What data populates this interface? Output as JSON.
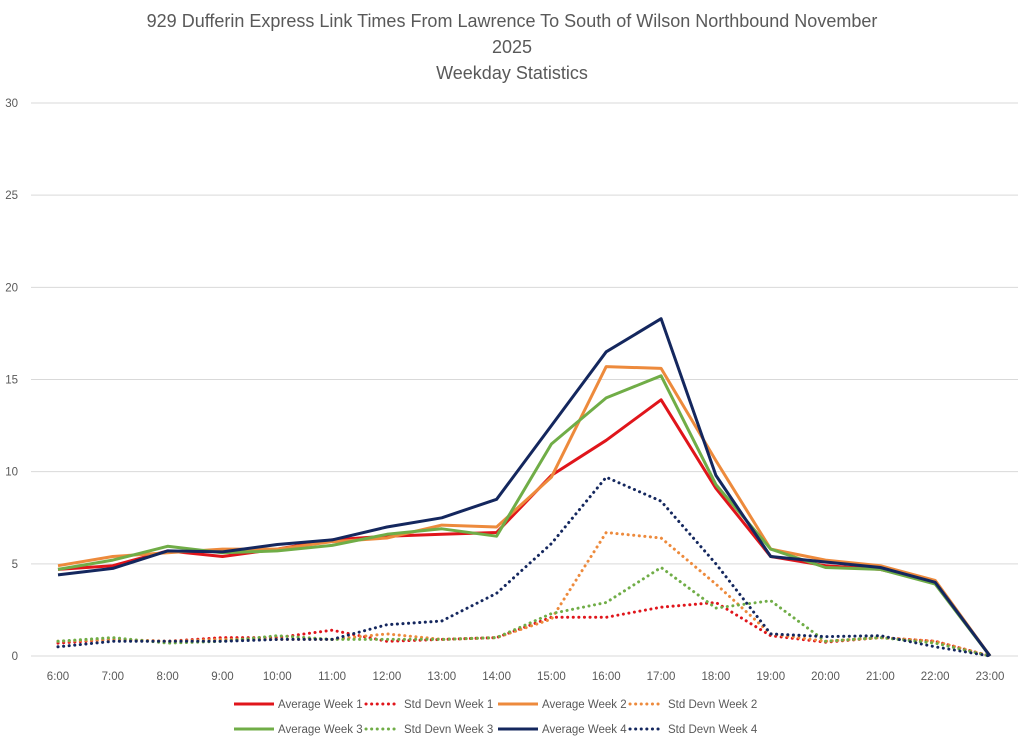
{
  "chart_data": {
    "type": "line",
    "title_lines": [
      "929 Dufferin Express Link Times From Lawrence To South of Wilson Northbound November",
      "2025",
      "Weekday Statistics"
    ],
    "xlabel": "",
    "ylabel": "",
    "ylim": [
      0,
      30
    ],
    "yticks": [
      0,
      5,
      10,
      15,
      20,
      25,
      30
    ],
    "grid": true,
    "legend_position": "bottom",
    "categories": [
      "6:00",
      "7:00",
      "8:00",
      "9:00",
      "10:00",
      "11:00",
      "12:00",
      "13:00",
      "14:00",
      "15:00",
      "16:00",
      "17:00",
      "18:00",
      "19:00",
      "20:00",
      "21:00",
      "22:00",
      "23:00"
    ],
    "series": [
      {
        "name": "Average Week 1",
        "color": "#e0151b",
        "style": "solid",
        "values": [
          4.7,
          4.9,
          5.7,
          5.4,
          5.8,
          6.3,
          6.5,
          6.6,
          6.7,
          9.8,
          11.7,
          13.9,
          9.1,
          5.4,
          4.9,
          4.7,
          4.0,
          0
        ]
      },
      {
        "name": "Std Devn Week 1",
        "color": "#e0151b",
        "style": "dotted",
        "values": [
          0.7,
          0.9,
          0.8,
          1.0,
          1.0,
          1.4,
          0.8,
          0.9,
          1.0,
          2.1,
          2.1,
          2.65,
          2.9,
          1.1,
          0.75,
          1.0,
          0.8,
          0
        ]
      },
      {
        "name": "Average Week 2",
        "color": "#ed8a3c",
        "style": "solid",
        "values": [
          4.9,
          5.4,
          5.6,
          5.8,
          5.8,
          6.2,
          6.4,
          7.1,
          7.0,
          9.7,
          15.7,
          15.6,
          10.6,
          5.8,
          5.2,
          4.9,
          4.1,
          0
        ]
      },
      {
        "name": "Std Devn Week 2",
        "color": "#ed8a3c",
        "style": "dotted",
        "values": [
          0.8,
          0.9,
          0.8,
          0.9,
          0.9,
          0.9,
          1.2,
          0.9,
          1.0,
          2.0,
          6.7,
          6.4,
          3.9,
          1.2,
          0.8,
          1.0,
          0.8,
          0
        ]
      },
      {
        "name": "Average Week 3",
        "color": "#70ad47",
        "style": "solid",
        "values": [
          4.7,
          5.2,
          5.95,
          5.6,
          5.7,
          6.0,
          6.6,
          6.9,
          6.5,
          11.5,
          14.0,
          15.2,
          9.3,
          5.8,
          4.8,
          4.7,
          3.9,
          0
        ]
      },
      {
        "name": "Std Devn Week 3",
        "color": "#70ad47",
        "style": "dotted",
        "values": [
          0.8,
          1.0,
          0.7,
          0.8,
          1.1,
          0.9,
          0.9,
          0.9,
          1.0,
          2.3,
          2.9,
          4.8,
          2.6,
          3.0,
          0.8,
          1.0,
          0.7,
          0
        ]
      },
      {
        "name": "Average Week 4",
        "color": "#14275e",
        "style": "solid",
        "values": [
          4.4,
          4.75,
          5.7,
          5.65,
          6.05,
          6.3,
          7.0,
          7.5,
          8.5,
          12.5,
          16.5,
          18.3,
          9.8,
          5.4,
          5.1,
          4.8,
          4.0,
          0
        ]
      },
      {
        "name": "Std Devn Week 4",
        "color": "#14275e",
        "style": "dotted",
        "values": [
          0.5,
          0.8,
          0.8,
          0.8,
          0.9,
          0.9,
          1.7,
          1.9,
          3.4,
          6.1,
          9.7,
          8.4,
          5.0,
          1.2,
          1.05,
          1.1,
          0.5,
          0
        ]
      }
    ]
  }
}
